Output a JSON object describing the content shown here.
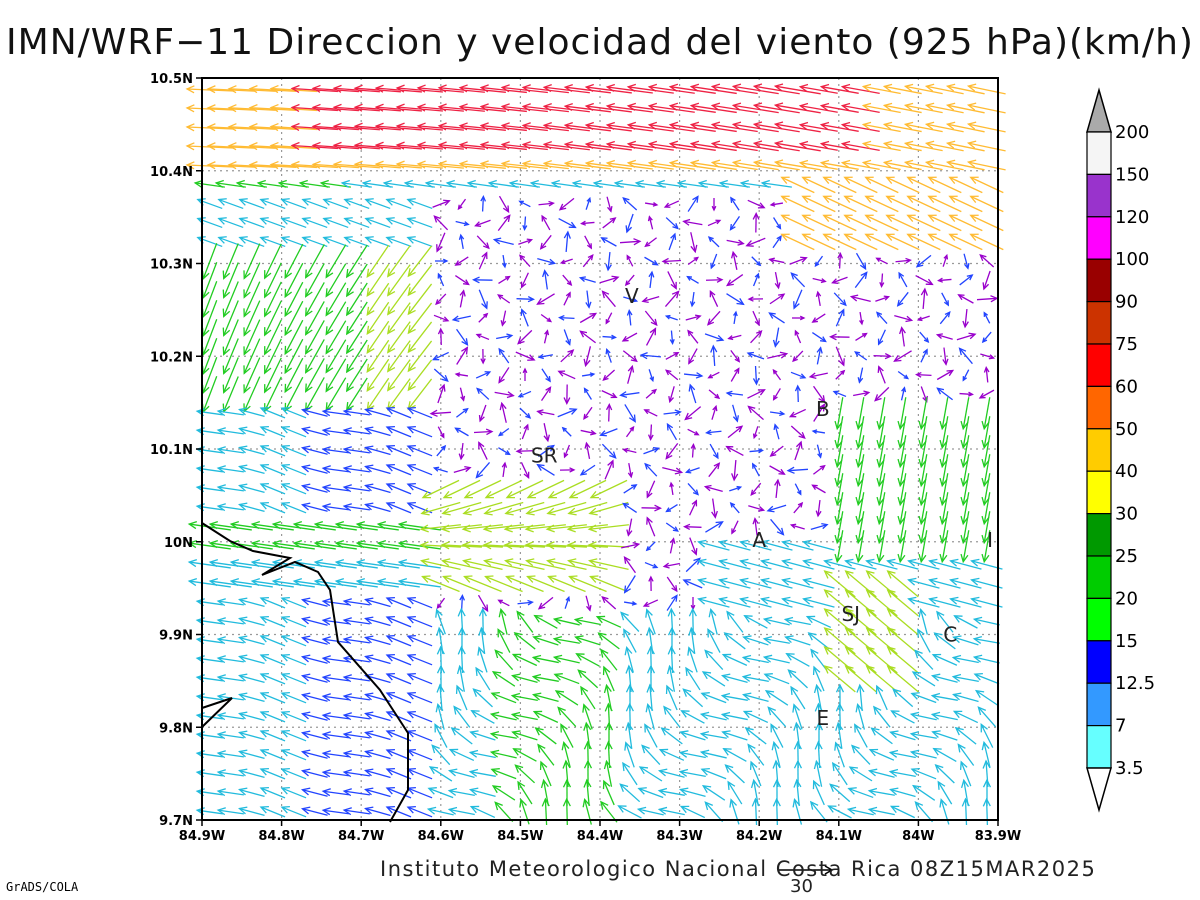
{
  "title": "IMN/WRF−11 Direccion y velocidad del viento (925 hPa)(km/h)",
  "footer": "Instituto Meteorologico Nacional Costa Rica 08Z15MAR2025",
  "credit": "GrADS/COLA",
  "reference_vector": {
    "label": "30",
    "speed": 30
  },
  "map": {
    "lon_range": [
      -84.9,
      -83.9
    ],
    "lat_range": [
      9.7,
      10.5
    ],
    "x_ticks": [
      "84.9W",
      "84.8W",
      "84.7W",
      "84.6W",
      "84.5W",
      "84.4W",
      "84.3W",
      "84.2W",
      "84.1W",
      "84W",
      "83.9W"
    ],
    "y_ticks": [
      "10.5N",
      "10.4N",
      "10.3N",
      "10.2N",
      "10.1N",
      "10N",
      "9.9N",
      "9.8N",
      "9.7N"
    ],
    "grid": "dotted",
    "places": [
      {
        "label": "V",
        "lon": -84.36,
        "lat": 10.265
      },
      {
        "label": "SR",
        "lon": -84.47,
        "lat": 10.093
      },
      {
        "label": "B",
        "lon": -84.12,
        "lat": 10.143
      },
      {
        "label": "A",
        "lon": -84.2,
        "lat": 10.002
      },
      {
        "label": "SJ",
        "lon": -84.085,
        "lat": 9.922
      },
      {
        "label": "C",
        "lon": -83.96,
        "lat": 9.9
      },
      {
        "label": "E",
        "lon": -84.12,
        "lat": 9.81
      },
      {
        "label": "I",
        "lon": -83.91,
        "lat": 10.002
      }
    ]
  },
  "colorbar": {
    "labels": [
      "200",
      "150",
      "120",
      "100",
      "90",
      "75",
      "60",
      "50",
      "40",
      "30",
      "25",
      "20",
      "15",
      "12.5",
      "7",
      "3.5"
    ],
    "colors": [
      "#f5f5f5",
      "#9933cc",
      "#ff00ff",
      "#990000",
      "#cc3300",
      "#ff0000",
      "#ff6600",
      "#ffcc00",
      "#ffff00",
      "#009900",
      "#00cc00",
      "#00ff00",
      "#0000ff",
      "#3399ff",
      "#66ffff"
    ],
    "top_arrow_color": "#aaaaaa",
    "bottom_arrow_color": "#ffffff"
  },
  "speed_colors": {
    "very_light": "#9900cc",
    "light": "#2244ff",
    "moderate": "#22bbdd",
    "fresh": "#22cc22",
    "strong": "#aadd22",
    "very_strong": "#ffbb33",
    "gale": "#ee2244"
  }
}
